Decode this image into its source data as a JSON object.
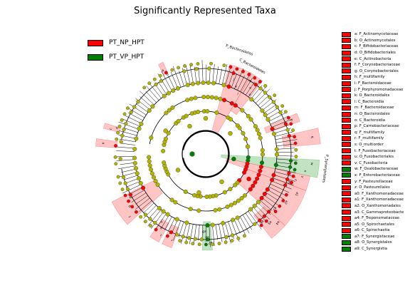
{
  "title": "Significantly Represented Taxa",
  "colors": {
    "np_hpt": "#ff0000",
    "vp_hpt": "#008000",
    "node": "#b3b300",
    "np_shade": "#ff5a5a",
    "vp_shade": "#4fb04f"
  },
  "legend": [
    {
      "label": "PT_NP_HPT",
      "color": "#ff0000"
    },
    {
      "label": "PT_VP_HPT",
      "color": "#008000"
    }
  ],
  "key": [
    {
      "label": "a: F_Actinomycetaceae",
      "color": "#ff0000"
    },
    {
      "label": "b: O_Actinomycetales",
      "color": "#ff0000"
    },
    {
      "label": "c: F_Bifidobacteriaceae",
      "color": "#ff0000"
    },
    {
      "label": "d: O_Bifidobacteriales",
      "color": "#ff0000"
    },
    {
      "label": "e: C_Actinobacteria",
      "color": "#ff0000"
    },
    {
      "label": "f: F_Corynebacteriaceae",
      "color": "#ff0000"
    },
    {
      "label": "g: O_Corynebacteriales",
      "color": "#ff0000"
    },
    {
      "label": "h: F_multifamily",
      "color": "#ff0000"
    },
    {
      "label": "i: F_Bacteroidaceae",
      "color": "#ff0000"
    },
    {
      "label": "j: F_Porphyromonadaceae",
      "color": "#ff0000"
    },
    {
      "label": "k: O_Bacteroidales",
      "color": "#ff0000"
    },
    {
      "label": "l: C_Bacteroidia",
      "color": "#ff0000"
    },
    {
      "label": "m: F_Bacteroidaceae",
      "color": "#ff0000"
    },
    {
      "label": "n: O_Bacteroidales",
      "color": "#ff0000"
    },
    {
      "label": "o: C_Bacteroidia",
      "color": "#ff0000"
    },
    {
      "label": "p: F_Carnobacteriaceae",
      "color": "#ff0000"
    },
    {
      "label": "q: F_multifamily",
      "color": "#ff0000"
    },
    {
      "label": "r: F_multifamily",
      "color": "#ff0000"
    },
    {
      "label": "s: O_multiorder",
      "color": "#ff0000"
    },
    {
      "label": "t: F_Fusobacteriaceae",
      "color": "#ff0000"
    },
    {
      "label": "u: O_Fusobacteriales",
      "color": "#ff0000"
    },
    {
      "label": "v: C_Fusobacteria",
      "color": "#ff0000"
    },
    {
      "label": "w: F_Oxalobacteraceae",
      "color": "#008000"
    },
    {
      "label": "x: F_Enterobacteriaceae",
      "color": "#008000"
    },
    {
      "label": "y: F_Pasteurellaceae",
      "color": "#ff0000"
    },
    {
      "label": "z: O_Pasteurellales",
      "color": "#ff0000"
    },
    {
      "label": "a0: F_Xanthomonadaceae",
      "color": "#ff0000"
    },
    {
      "label": "a1: F_Xanthomonadaceae",
      "color": "#ff0000"
    },
    {
      "label": "a2: O_Xanthomonadales",
      "color": "#ff0000"
    },
    {
      "label": "a3: C_Gammaproteobacte",
      "color": "#ff0000"
    },
    {
      "label": "a4: F_Treponemataceae",
      "color": "#ff0000"
    },
    {
      "label": "a5: O_Spirochaetales",
      "color": "#ff0000"
    },
    {
      "label": "a6: C_Spirochaetia",
      "color": "#ff0000"
    },
    {
      "label": "a7: F_Synergistaceae",
      "color": "#008000"
    },
    {
      "label": "a8: O_Synergistales",
      "color": "#008000"
    },
    {
      "label": "a9: C_Synergistia",
      "color": "#008000"
    }
  ],
  "clade_labels": {
    "bacteroidales": "P_Bacteroidetes",
    "bacteroidetes": "C_Bacteroidetes",
    "synergistetes": "P_Synergistetes"
  },
  "sectors": [
    {
      "letters": [
        "i",
        "j",
        "k",
        "l"
      ],
      "group": "np"
    },
    {
      "letters": [
        "m",
        "n",
        "o"
      ],
      "group": "np"
    },
    {
      "letters": [
        "p"
      ],
      "group": "np"
    },
    {
      "letters": [
        "q"
      ],
      "group": "np"
    },
    {
      "letters": [
        "w",
        "x"
      ],
      "group": "vp"
    },
    {
      "letters": [
        "y",
        "z",
        "a0"
      ],
      "group": "np"
    },
    {
      "letters": [
        "a1",
        "a2",
        "a3"
      ],
      "group": "np"
    },
    {
      "letters": [
        "a4",
        "a5",
        "a6"
      ],
      "group": "np"
    },
    {
      "letters": [
        "a7",
        "a8",
        "a9"
      ],
      "group": "vp"
    },
    {
      "letters": [
        "a",
        "b"
      ],
      "group": "np"
    },
    {
      "letters": [
        "c",
        "d"
      ],
      "group": "np"
    },
    {
      "letters": [
        "e"
      ],
      "group": "np"
    },
    {
      "letters": [
        "f",
        "g",
        "h"
      ],
      "group": "np"
    },
    {
      "letters": [
        "r",
        "s"
      ],
      "group": "np"
    },
    {
      "letters": [
        "t",
        "u",
        "v"
      ],
      "group": "np"
    }
  ]
}
